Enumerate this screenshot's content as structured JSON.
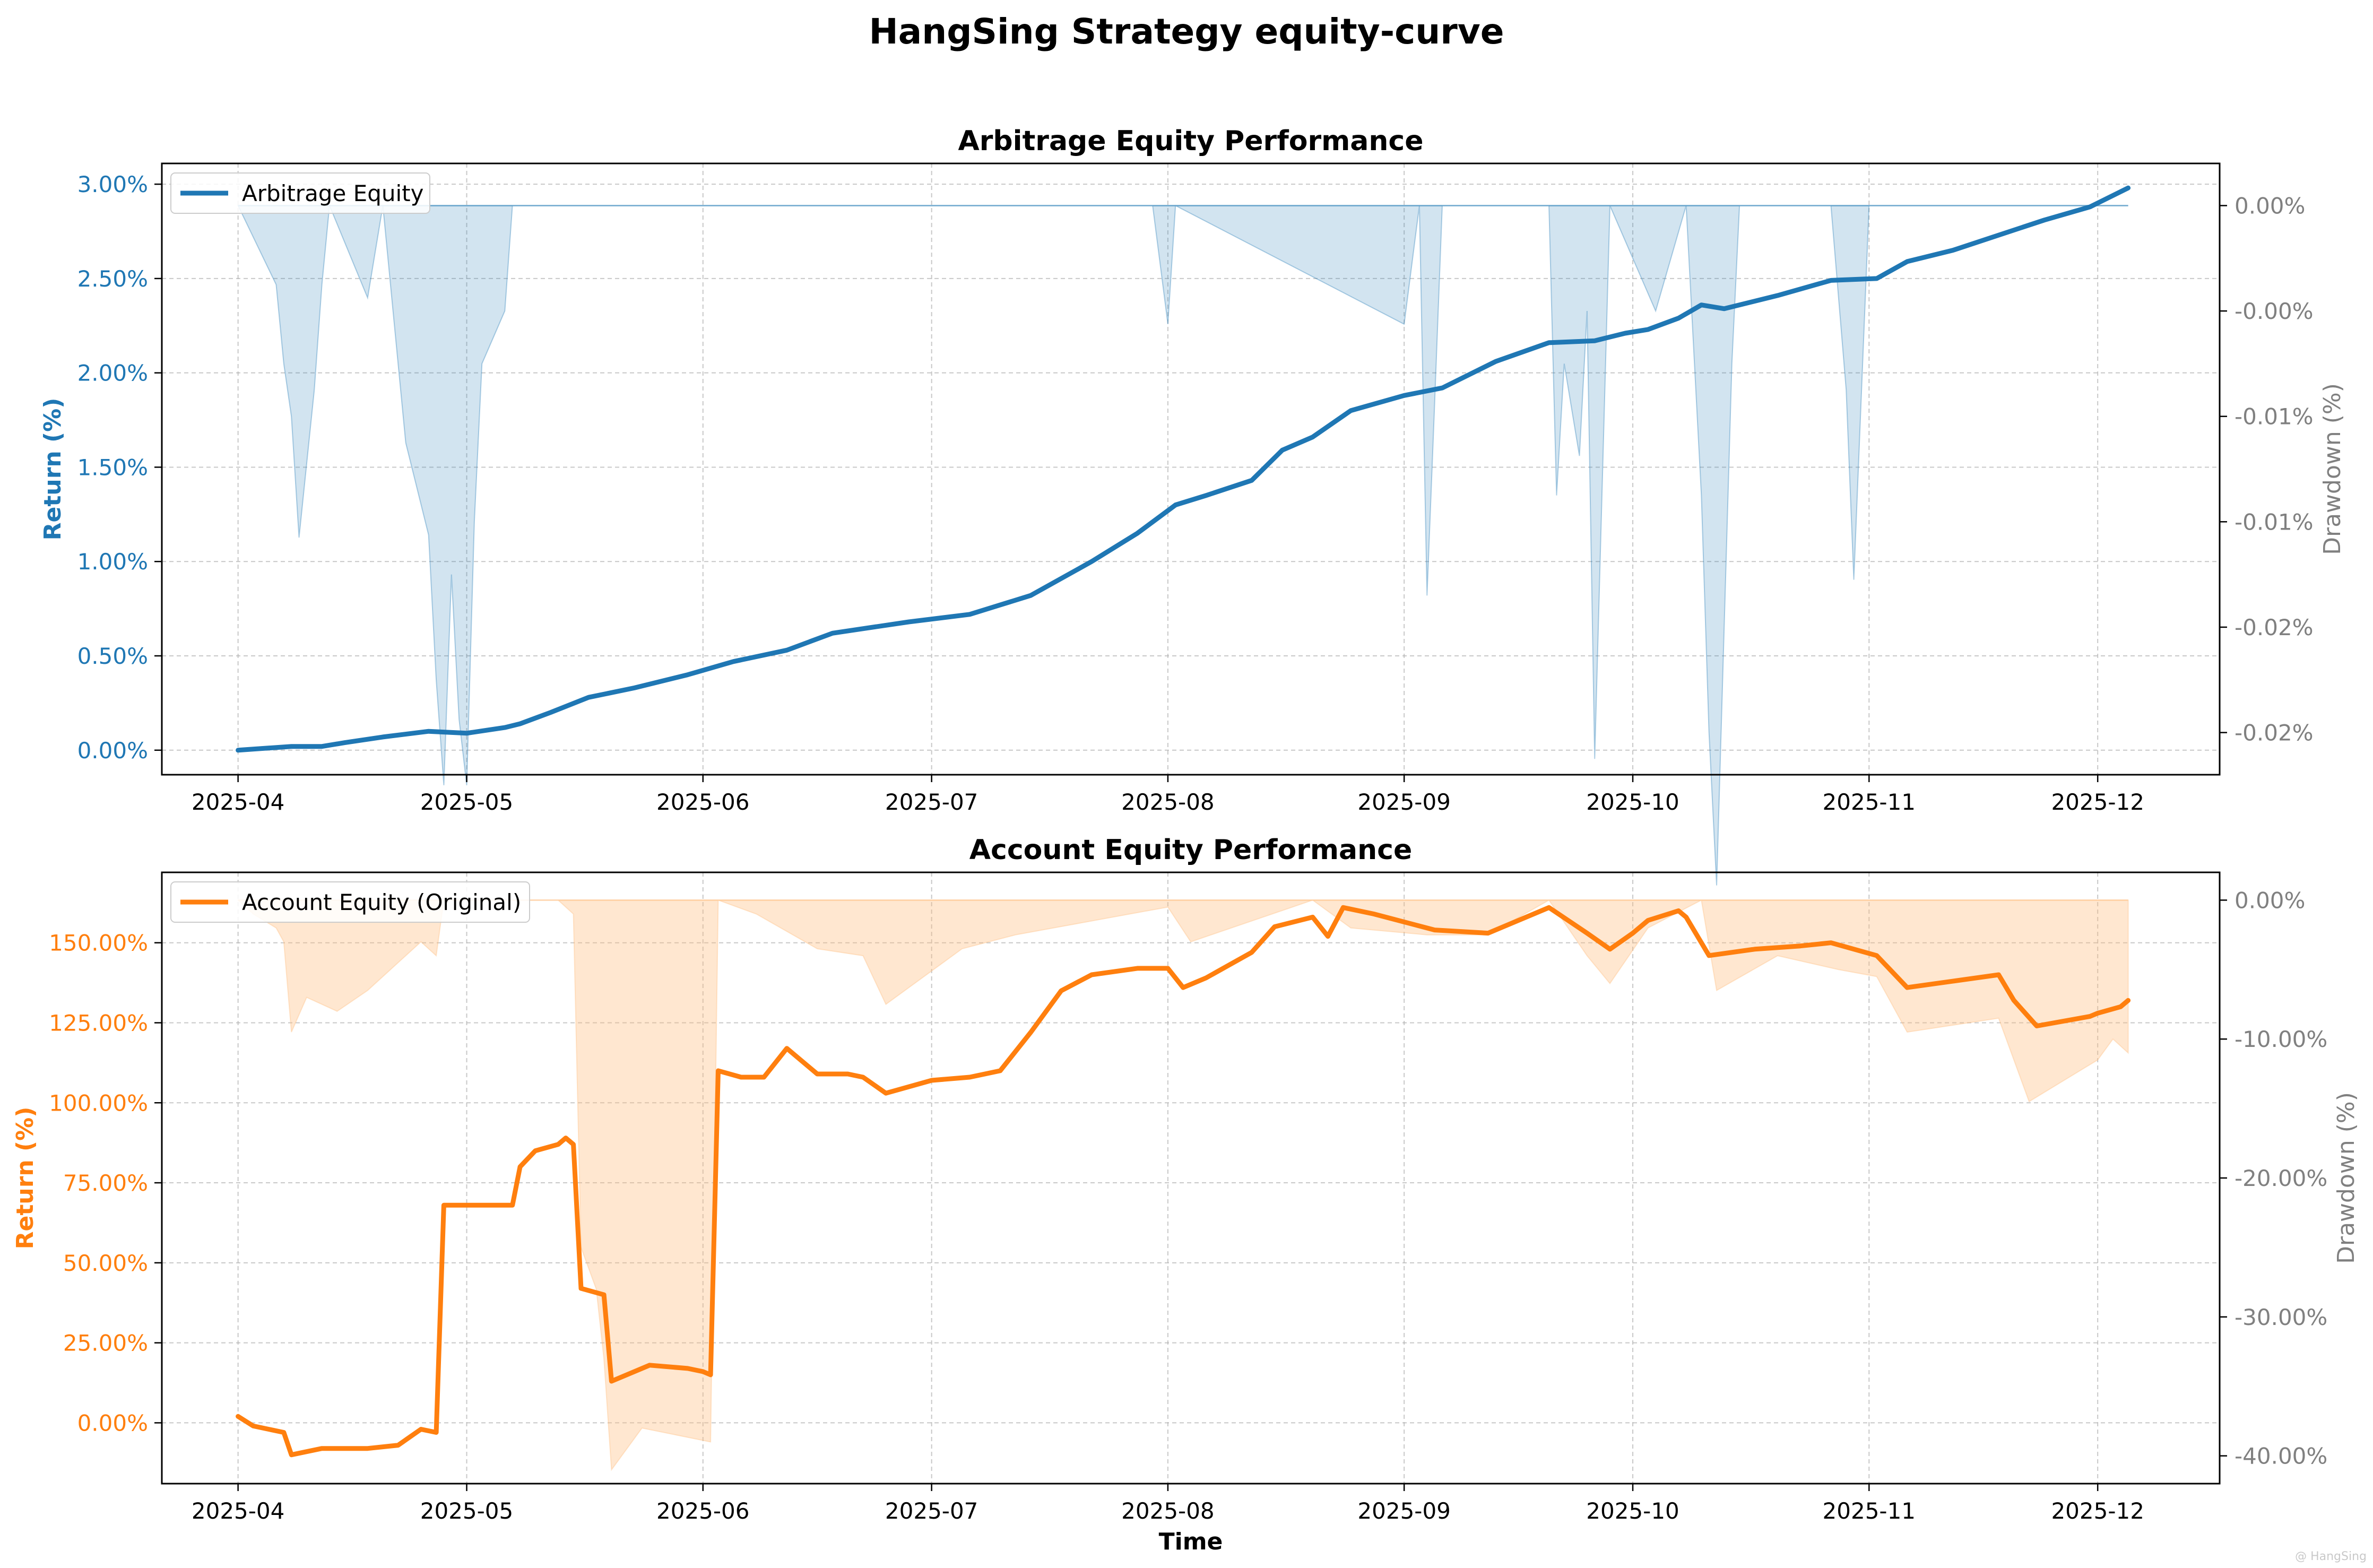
{
  "figure": {
    "title": "HangSing Strategy equity-curve",
    "xlabel": "Time",
    "watermark": "@ HangSing"
  },
  "chart_data": [
    {
      "type": "line",
      "title": "Arbitrage Equity Performance",
      "xlabel": "",
      "ylabel": "Return (%)",
      "y2label": "Drawdown (%)",
      "xlim": [
        "2025-03-22",
        "2025-12-17"
      ],
      "ylim": [
        -0.13,
        3.11
      ],
      "y2lim": [
        -0.0216,
        0.0016
      ],
      "xticks": [
        "2025-04",
        "2025-05",
        "2025-06",
        "2025-07",
        "2025-08",
        "2025-09",
        "2025-10",
        "2025-11",
        "2025-12"
      ],
      "yticks": [
        "0.00%",
        "0.50%",
        "1.00%",
        "1.50%",
        "2.00%",
        "2.50%",
        "3.00%"
      ],
      "y2ticks": [
        "0.00%",
        "-0.00%",
        "-0.01%",
        "-0.01%",
        "-0.02%",
        "-0.02%"
      ],
      "grid": true,
      "legend_position": "top-left",
      "colors": {
        "line": "#1f77b4",
        "fill": "#1f77b4",
        "axis_left": "#1f77b4",
        "axis_right": "#808080"
      },
      "series": [
        {
          "name": "Arbitrage Equity",
          "x": [
            "2025-04-01",
            "2025-04-08",
            "2025-04-12",
            "2025-04-15",
            "2025-04-20",
            "2025-04-26",
            "2025-05-01",
            "2025-05-06",
            "2025-05-08",
            "2025-05-12",
            "2025-05-17",
            "2025-05-23",
            "2025-05-30",
            "2025-06-05",
            "2025-06-12",
            "2025-06-18",
            "2025-06-28",
            "2025-07-06",
            "2025-07-14",
            "2025-07-22",
            "2025-07-28",
            "2025-08-02",
            "2025-08-06",
            "2025-08-12",
            "2025-08-16",
            "2025-08-20",
            "2025-08-25",
            "2025-09-01",
            "2025-09-06",
            "2025-09-13",
            "2025-09-20",
            "2025-09-26",
            "2025-09-30",
            "2025-10-03",
            "2025-10-07",
            "2025-10-10",
            "2025-10-13",
            "2025-10-20",
            "2025-10-27",
            "2025-11-02",
            "2025-11-06",
            "2025-11-12",
            "2025-11-18",
            "2025-11-24",
            "2025-11-30",
            "2025-12-05"
          ],
          "values": [
            0.0,
            0.02,
            0.02,
            0.04,
            0.07,
            0.1,
            0.09,
            0.12,
            0.14,
            0.2,
            0.28,
            0.33,
            0.4,
            0.47,
            0.53,
            0.62,
            0.68,
            0.72,
            0.82,
            1.0,
            1.15,
            1.3,
            1.35,
            1.43,
            1.59,
            1.66,
            1.8,
            1.88,
            1.92,
            2.06,
            2.16,
            2.17,
            2.21,
            2.23,
            2.29,
            2.36,
            2.34,
            2.41,
            2.49,
            2.5,
            2.59,
            2.65,
            2.73,
            2.81,
            2.88,
            2.98
          ]
        },
        {
          "name": "Drawdown",
          "x": [
            "2025-04-01",
            "2025-04-06",
            "2025-04-07",
            "2025-04-08",
            "2025-04-09",
            "2025-04-11",
            "2025-04-12",
            "2025-04-13",
            "2025-04-18",
            "2025-04-20",
            "2025-04-23",
            "2025-04-26",
            "2025-04-27",
            "2025-04-28",
            "2025-04-29",
            "2025-04-30",
            "2025-05-01",
            "2025-05-02",
            "2025-05-03",
            "2025-05-06",
            "2025-05-07",
            "2025-07-30",
            "2025-08-01",
            "2025-08-02",
            "2025-09-01",
            "2025-09-03",
            "2025-09-04",
            "2025-09-05",
            "2025-09-06",
            "2025-09-20",
            "2025-09-21",
            "2025-09-22",
            "2025-09-24",
            "2025-09-25",
            "2025-09-26",
            "2025-09-28",
            "2025-10-04",
            "2025-10-08",
            "2025-10-10",
            "2025-10-11",
            "2025-10-12",
            "2025-10-14",
            "2025-10-15",
            "2025-10-27",
            "2025-10-29",
            "2025-10-30",
            "2025-11-01",
            "2025-12-05"
          ],
          "values": [
            0.0,
            -0.003,
            -0.006,
            -0.008,
            -0.0126,
            -0.007,
            -0.003,
            0.0,
            -0.0035,
            0.0,
            -0.009,
            -0.0125,
            -0.018,
            -0.022,
            -0.014,
            -0.0195,
            -0.022,
            -0.012,
            -0.006,
            -0.004,
            0.0,
            0.0,
            -0.0045,
            0.0,
            -0.0045,
            0.0,
            -0.0148,
            -0.0075,
            0.0,
            0.0,
            -0.011,
            -0.006,
            -0.0095,
            -0.004,
            -0.021,
            0.0,
            -0.004,
            0.0,
            -0.011,
            -0.02,
            -0.0258,
            -0.006,
            0.0,
            0.0,
            -0.007,
            -0.0142,
            0.0,
            0.0
          ]
        }
      ]
    },
    {
      "type": "line",
      "title": "Account Equity Performance",
      "xlabel": "Time",
      "ylabel": "Return (%)",
      "y2label": "Drawdown (%)",
      "xlim": [
        "2025-03-22",
        "2025-12-17"
      ],
      "ylim": [
        -19.0,
        172.0
      ],
      "y2lim": [
        -42.0,
        2.0
      ],
      "xticks": [
        "2025-04",
        "2025-05",
        "2025-06",
        "2025-07",
        "2025-08",
        "2025-09",
        "2025-10",
        "2025-11",
        "2025-12"
      ],
      "yticks": [
        "0.00%",
        "25.00%",
        "50.00%",
        "75.00%",
        "100.00%",
        "125.00%",
        "150.00%"
      ],
      "y2ticks": [
        "0.00%",
        "-10.00%",
        "-20.00%",
        "-30.00%",
        "-40.00%"
      ],
      "grid": true,
      "legend_position": "top-left",
      "colors": {
        "line": "#ff7f0e",
        "fill": "#ffbb78",
        "axis_left": "#ff7f0e",
        "axis_right": "#808080"
      },
      "series": [
        {
          "name": "Account Equity (Original)",
          "x": [
            "2025-04-01",
            "2025-04-03",
            "2025-04-07",
            "2025-04-08",
            "2025-04-12",
            "2025-04-15",
            "2025-04-18",
            "2025-04-22",
            "2025-04-25",
            "2025-04-27",
            "2025-04-28",
            "2025-05-05",
            "2025-05-07",
            "2025-05-08",
            "2025-05-10",
            "2025-05-13",
            "2025-05-14",
            "2025-05-15",
            "2025-05-16",
            "2025-05-19",
            "2025-05-20",
            "2025-05-25",
            "2025-05-30",
            "2025-06-01",
            "2025-06-02",
            "2025-06-03",
            "2025-06-06",
            "2025-06-09",
            "2025-06-12",
            "2025-06-16",
            "2025-06-20",
            "2025-06-22",
            "2025-06-25",
            "2025-07-01",
            "2025-07-06",
            "2025-07-10",
            "2025-07-14",
            "2025-07-18",
            "2025-07-22",
            "2025-07-28",
            "2025-08-01",
            "2025-08-03",
            "2025-08-06",
            "2025-08-12",
            "2025-08-15",
            "2025-08-20",
            "2025-08-22",
            "2025-08-24",
            "2025-08-28",
            "2025-09-05",
            "2025-09-12",
            "2025-09-20",
            "2025-09-25",
            "2025-09-28",
            "2025-10-01",
            "2025-10-03",
            "2025-10-07",
            "2025-10-08",
            "2025-10-11",
            "2025-10-17",
            "2025-10-23",
            "2025-10-27",
            "2025-11-02",
            "2025-11-06",
            "2025-11-12",
            "2025-11-18",
            "2025-11-20",
            "2025-11-23",
            "2025-11-30",
            "2025-12-01",
            "2025-12-04",
            "2025-12-05"
          ],
          "values": [
            2,
            -1,
            -3,
            -10,
            -8,
            -8,
            -8,
            -7,
            -2,
            -3,
            68,
            68,
            68,
            80,
            85,
            87,
            89,
            87,
            42,
            40,
            13,
            18,
            17,
            16,
            15,
            110,
            108,
            108,
            117,
            109,
            109,
            108,
            103,
            107,
            108,
            110,
            122,
            135,
            140,
            142,
            142,
            136,
            139,
            147,
            155,
            158,
            152,
            161,
            159,
            154,
            153,
            161,
            153,
            148,
            153,
            157,
            160,
            158,
            146,
            148,
            149,
            150,
            146,
            136,
            138,
            140,
            132,
            124,
            127,
            128,
            130,
            132
          ]
        },
        {
          "name": "Drawdown",
          "x": [
            "2025-04-01",
            "2025-04-03",
            "2025-04-06",
            "2025-04-07",
            "2025-04-08",
            "2025-04-10",
            "2025-04-14",
            "2025-04-18",
            "2025-04-25",
            "2025-04-27",
            "2025-04-28",
            "2025-05-06",
            "2025-05-13",
            "2025-05-15",
            "2025-05-16",
            "2025-05-18",
            "2025-05-19",
            "2025-05-20",
            "2025-05-24",
            "2025-06-02",
            "2025-06-03",
            "2025-06-08",
            "2025-06-16",
            "2025-06-22",
            "2025-06-25",
            "2025-07-05",
            "2025-07-12",
            "2025-08-01",
            "2025-08-04",
            "2025-08-20",
            "2025-08-25",
            "2025-09-04",
            "2025-09-12",
            "2025-09-20",
            "2025-09-25",
            "2025-09-28",
            "2025-10-03",
            "2025-10-10",
            "2025-10-12",
            "2025-10-20",
            "2025-10-28",
            "2025-11-02",
            "2025-11-06",
            "2025-11-12",
            "2025-11-18",
            "2025-11-22",
            "2025-11-28",
            "2025-12-01",
            "2025-12-03",
            "2025-12-05"
          ],
          "values": [
            0.0,
            -1.0,
            -2.0,
            -3.0,
            -9.5,
            -7.0,
            -8.0,
            -6.5,
            -3.0,
            -4.0,
            0.0,
            0.0,
            0.0,
            -1.0,
            -25.0,
            -28.0,
            -33.0,
            -41.0,
            -38.0,
            -39.0,
            0.0,
            -1.0,
            -3.5,
            -4.0,
            -7.5,
            -3.5,
            -2.5,
            -0.5,
            -3.0,
            0.0,
            -2.0,
            -2.5,
            -2.5,
            0.0,
            -4.0,
            -6.0,
            -2.0,
            0.0,
            -6.5,
            -4.0,
            -5.0,
            -5.5,
            -9.5,
            -9.0,
            -8.5,
            -14.5,
            -12.5,
            -11.5,
            -10.0,
            -11.0
          ]
        }
      ]
    }
  ]
}
